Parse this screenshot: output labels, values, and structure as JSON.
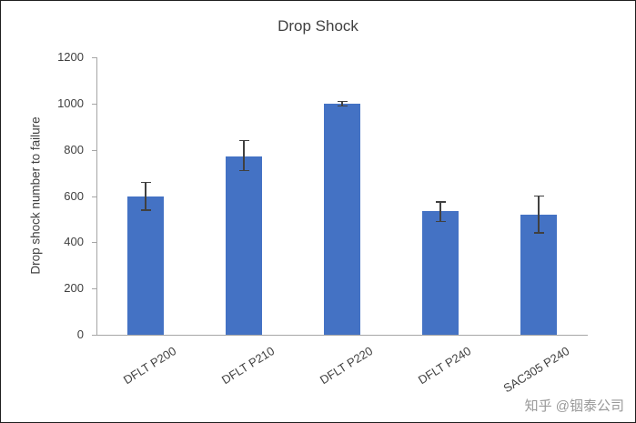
{
  "watermark": "知乎 @铟泰公司",
  "chart_data": {
    "type": "bar",
    "title": "Drop Shock",
    "ylabel": "Drop shock number to failure",
    "xlabel": "",
    "categories": [
      "DFLT P200",
      "DFLT P210",
      "DFLT P220",
      "DFLT P240",
      "SAC305 P240"
    ],
    "values": [
      600,
      770,
      1000,
      535,
      520
    ],
    "error_plus": [
      60,
      70,
      10,
      40,
      80
    ],
    "error_minus": [
      60,
      60,
      10,
      45,
      80
    ],
    "ylim": [
      0,
      1200
    ],
    "yticks": [
      0,
      200,
      400,
      600,
      800,
      1000,
      1200
    ],
    "grid": false,
    "legend": "none",
    "colors": {
      "bar": "#4472C4",
      "error": "#404040",
      "axis": "#A6A6A6",
      "text": "#404040",
      "watermark": "#999999"
    }
  }
}
